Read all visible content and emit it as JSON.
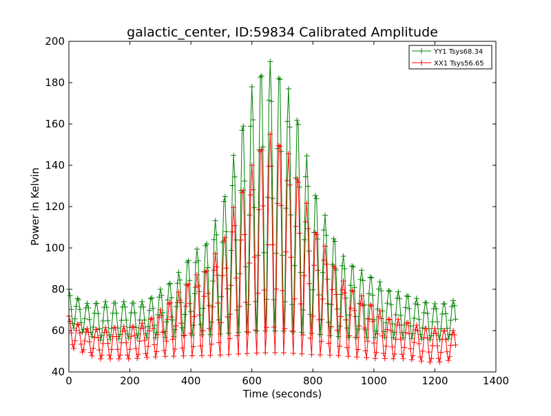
{
  "chart_data": {
    "type": "line",
    "title": "galactic_center, ID:59834 Calibrated Amplitude",
    "xlabel": "Time (seconds)",
    "ylabel": "Power in Kelvin",
    "xlim": [
      0,
      1400
    ],
    "ylim": [
      40,
      200
    ],
    "xticks": [
      0,
      200,
      400,
      600,
      800,
      1000,
      1200,
      1400
    ],
    "yticks": [
      40,
      60,
      80,
      100,
      120,
      140,
      160,
      180,
      200
    ],
    "x_tick_labels": [
      "0",
      "200",
      "400",
      "600",
      "800",
      "1000",
      "1200",
      "1400"
    ],
    "y_tick_labels": [
      "40",
      "60",
      "80",
      "100",
      "120",
      "140",
      "160",
      "180",
      "200"
    ],
    "grid": false,
    "legend_placement": "top-right",
    "marker": "+",
    "series": [
      {
        "name": "YY1 Tsys68.34",
        "color": "#008000",
        "sample_interval_s": 4,
        "oscillation_period_s": 30,
        "x_range": [
          0,
          1270
        ],
        "peak_envelope": {
          "x": [
            0,
            50,
            100,
            150,
            200,
            250,
            300,
            350,
            400,
            450,
            500,
            550,
            600,
            625,
            650,
            675,
            700,
            750,
            800,
            850,
            900,
            950,
            1000,
            1050,
            1100,
            1150,
            1200,
            1250,
            1270
          ],
          "y": [
            80,
            73,
            74,
            74,
            74,
            74,
            80,
            86,
            97,
            103,
            120,
            151,
            178,
            187,
            191,
            189,
            185,
            165,
            131,
            112,
            96,
            90,
            86,
            80,
            78,
            75,
            73,
            74,
            75
          ]
        },
        "trough_envelope": {
          "x": [
            0,
            100,
            200,
            300,
            400,
            500,
            600,
            700,
            800,
            900,
            1000,
            1100,
            1200,
            1270
          ],
          "y": [
            62,
            55,
            56,
            56,
            57,
            57,
            57,
            57,
            57,
            56,
            56,
            56,
            55,
            56
          ]
        }
      },
      {
        "name": "XX1 Tsys56.65",
        "color": "#ff0000",
        "sample_interval_s": 4,
        "oscillation_period_s": 30,
        "x_range": [
          0,
          1270
        ],
        "peak_envelope": {
          "x": [
            0,
            50,
            100,
            150,
            200,
            250,
            300,
            350,
            400,
            450,
            500,
            550,
            600,
            625,
            650,
            675,
            700,
            750,
            800,
            850,
            900,
            950,
            1000,
            1050,
            1100,
            1150,
            1200,
            1250,
            1270
          ],
          "y": [
            67,
            61,
            61,
            62,
            62,
            64,
            70,
            77,
            85,
            90,
            102,
            124,
            140,
            150,
            155,
            155,
            152,
            136,
            112,
            98,
            84,
            78,
            72,
            66,
            65,
            62,
            61,
            60,
            60
          ]
        },
        "trough_envelope": {
          "x": [
            0,
            100,
            200,
            300,
            400,
            500,
            600,
            700,
            800,
            900,
            1000,
            1100,
            1200,
            1270
          ],
          "y": [
            52,
            46,
            46,
            47,
            47,
            47,
            47,
            47,
            47,
            47,
            46,
            46,
            44,
            46
          ]
        }
      }
    ]
  }
}
